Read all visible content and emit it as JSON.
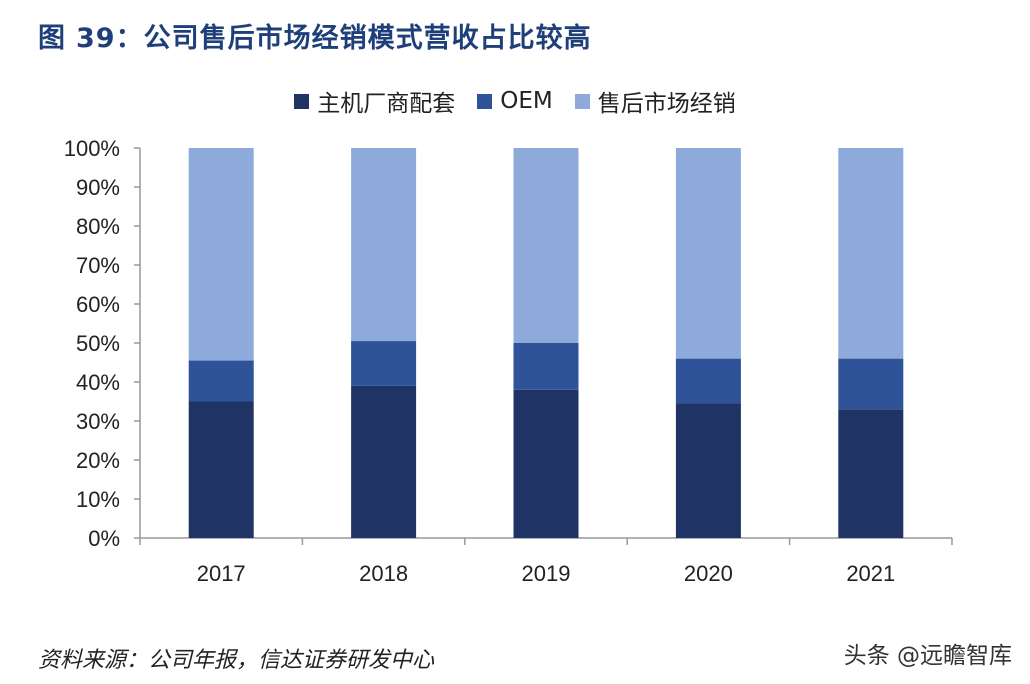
{
  "figure": {
    "label": "图",
    "number": "39：",
    "title": "公司售后市场经销模式营收占比较高"
  },
  "chart_data": {
    "type": "bar",
    "stacked": true,
    "categories": [
      "2017",
      "2018",
      "2019",
      "2020",
      "2021"
    ],
    "series": [
      {
        "name": "主机厂商配套",
        "color": "#1f3464",
        "values": [
          35,
          39,
          38,
          34.5,
          33
        ]
      },
      {
        "name": "OEM",
        "color": "#2e5398",
        "values": [
          10.5,
          11.5,
          12,
          11.5,
          13
        ]
      },
      {
        "name": "售后市场经销",
        "color": "#8eaadb",
        "values": [
          54.5,
          49.5,
          50,
          54,
          54
        ]
      }
    ],
    "y_ticks": [
      "0%",
      "10%",
      "20%",
      "30%",
      "40%",
      "50%",
      "60%",
      "70%",
      "80%",
      "90%",
      "100%"
    ],
    "ylim": [
      0,
      100
    ],
    "legend_position": "top-center",
    "grid": false
  },
  "source": "资料来源：公司年报，信达证券研发中心",
  "watermark": "头条 @远瞻智库"
}
